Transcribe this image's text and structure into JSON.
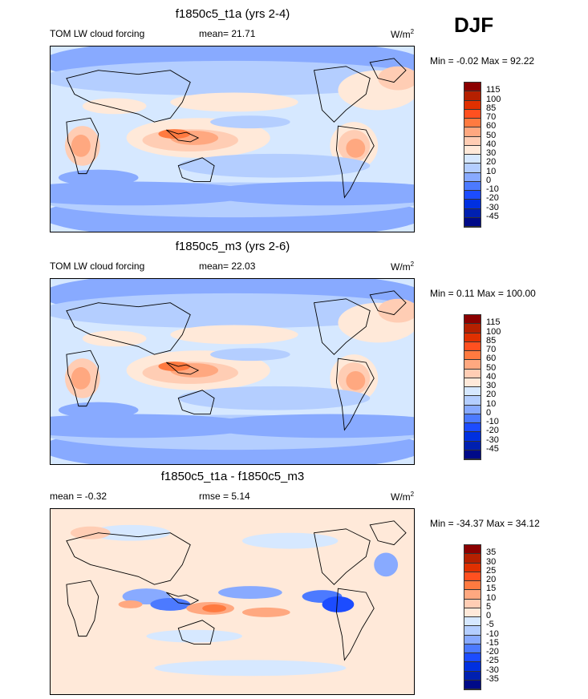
{
  "season": "DJF",
  "palette": [
    "#8b0000",
    "#b52000",
    "#e03000",
    "#ff5020",
    "#ff7a40",
    "#ffa880",
    "#ffcdb4",
    "#ffe9d9",
    "#d6e8ff",
    "#b4ceff",
    "#88aaff",
    "#4c7aff",
    "#1c4cff",
    "#0030e0",
    "#0020b0",
    "#000a88"
  ],
  "panels": [
    {
      "title": "f1850c5_t1a (yrs 2-4)",
      "left_label": "TOM LW cloud forcing",
      "stat_label": "mean=  21.71",
      "units": "W/m",
      "units_sup": "2",
      "minmax": "Min =  -0.02 Max =  92.22",
      "colorbar_labels": [
        "115",
        "100",
        "85",
        "70",
        "60",
        "50",
        "40",
        "30",
        "20",
        "10",
        "0",
        "-10",
        "-20",
        "-30",
        "-45"
      ]
    },
    {
      "title": "f1850c5_m3 (yrs 2-6)",
      "left_label": "TOM LW cloud forcing",
      "stat_label": "mean=  22.03",
      "units": "W/m",
      "units_sup": "2",
      "minmax": "Min =   0.11 Max = 100.00",
      "colorbar_labels": [
        "115",
        "100",
        "85",
        "70",
        "60",
        "50",
        "40",
        "30",
        "20",
        "10",
        "0",
        "-10",
        "-20",
        "-30",
        "-45"
      ]
    },
    {
      "title": "f1850c5_t1a - f1850c5_m3",
      "left_label": "mean =  -0.32",
      "stat_label": "rmse =   5.14",
      "units": "W/m",
      "units_sup": "2",
      "minmax": "Min = -34.37 Max =  34.12",
      "colorbar_labels": [
        "35",
        "30",
        "25",
        "20",
        "15",
        "10",
        "5",
        "0",
        "-5",
        "-10",
        "-15",
        "-20",
        "-25",
        "-30",
        "-35"
      ]
    }
  ]
}
